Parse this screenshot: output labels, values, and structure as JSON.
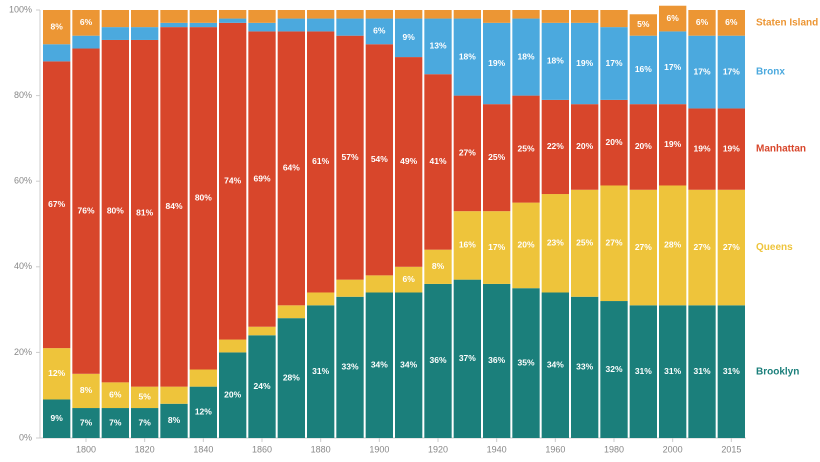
{
  "chart_data": {
    "type": "stacked-bar",
    "categories": [
      null,
      "1800",
      null,
      "1820",
      null,
      "1840",
      null,
      "1860",
      null,
      "1880",
      null,
      "1900",
      null,
      "1920",
      null,
      "1940",
      null,
      "1960",
      null,
      "1980",
      null,
      "2000",
      null,
      "2015"
    ],
    "ylim": [
      0,
      100
    ],
    "yticks": [
      {
        "value": 0,
        "label": "0%"
      },
      {
        "value": 20,
        "label": "20%"
      },
      {
        "value": 40,
        "label": "40%"
      },
      {
        "value": 60,
        "label": "60%"
      },
      {
        "value": 80,
        "label": "80%"
      },
      {
        "value": 100,
        "label": "100%"
      }
    ],
    "series": [
      {
        "name": "Brooklyn",
        "color": "#1b7f7b",
        "values": [
          9,
          7,
          7,
          7,
          8,
          12,
          20,
          24,
          28,
          31,
          33,
          34,
          34,
          36,
          37,
          36,
          35,
          34,
          33,
          32,
          31,
          31,
          31,
          31
        ],
        "value_labels": [
          "9%",
          "7%",
          "7%",
          "7%",
          "8%",
          "12%",
          "20%",
          "24%",
          "28%",
          "31%",
          "33%",
          "34%",
          "34%",
          "36%",
          "37%",
          "36%",
          "35%",
          "34%",
          "33%",
          "32%",
          "31%",
          "31%",
          "31%",
          "31%"
        ]
      },
      {
        "name": "Queens",
        "color": "#eec43b",
        "values": [
          12,
          8,
          6,
          5,
          4,
          4,
          3,
          2,
          3,
          3,
          4,
          4,
          6,
          8,
          16,
          17,
          20,
          23,
          25,
          27,
          27,
          28,
          27,
          27
        ],
        "value_labels": [
          "12%",
          "8%",
          "6%",
          "5%",
          null,
          null,
          null,
          null,
          null,
          null,
          null,
          null,
          "6%",
          "8%",
          "16%",
          "17%",
          "20%",
          "23%",
          "25%",
          "27%",
          "27%",
          "28%",
          "27%",
          "27%"
        ]
      },
      {
        "name": "Manhattan",
        "color": "#d8462b",
        "values": [
          67,
          76,
          80,
          81,
          84,
          80,
          74,
          69,
          64,
          61,
          57,
          54,
          49,
          41,
          27,
          25,
          25,
          22,
          20,
          20,
          20,
          19,
          19,
          19
        ],
        "value_labels": [
          "67%",
          "76%",
          "80%",
          "81%",
          "84%",
          "80%",
          "74%",
          "69%",
          "64%",
          "61%",
          "57%",
          "54%",
          "49%",
          "41%",
          "27%",
          "25%",
          "25%",
          "22%",
          "20%",
          "20%",
          "20%",
          "19%",
          "19%",
          "19%"
        ]
      },
      {
        "name": "Bronx",
        "color": "#4ba9de",
        "values": [
          4,
          3,
          3,
          3,
          1,
          1,
          1,
          2,
          3,
          3,
          4,
          6,
          9,
          13,
          18,
          19,
          18,
          18,
          19,
          17,
          16,
          17,
          17,
          17
        ],
        "value_labels": [
          null,
          null,
          null,
          null,
          null,
          null,
          null,
          null,
          null,
          null,
          null,
          "6%",
          "9%",
          "13%",
          "18%",
          "19%",
          "18%",
          "18%",
          "19%",
          "17%",
          "16%",
          "17%",
          "17%",
          "17%"
        ]
      },
      {
        "name": "Staten Island",
        "color": "#ec9634",
        "values": [
          8,
          6,
          4,
          4,
          3,
          3,
          2,
          3,
          2,
          2,
          2,
          2,
          2,
          2,
          2,
          3,
          2,
          3,
          3,
          4,
          5,
          6,
          6,
          6
        ],
        "value_labels": [
          "8%",
          "6%",
          null,
          null,
          null,
          null,
          null,
          null,
          null,
          null,
          null,
          null,
          null,
          null,
          null,
          null,
          null,
          null,
          null,
          null,
          "5%",
          "6%",
          "6%",
          "6%"
        ]
      }
    ]
  }
}
